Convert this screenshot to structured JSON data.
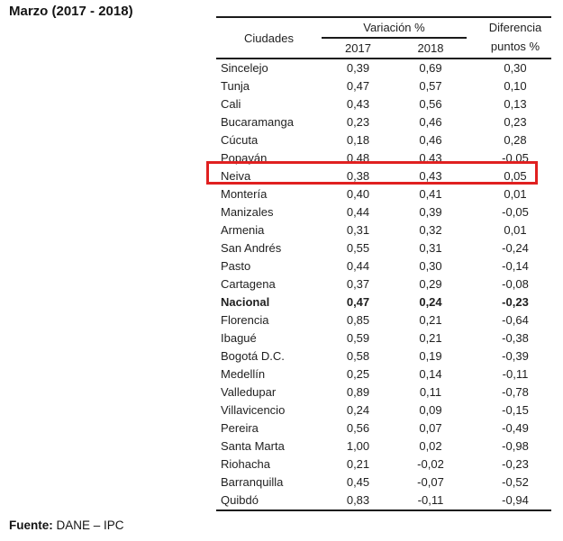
{
  "title": "Marzo (2017 - 2018)",
  "highlight": {
    "color": "#e02020",
    "city": "Neiva"
  },
  "source": {
    "label": "Fuente:",
    "text": " DANE – IPC"
  },
  "table": {
    "header": {
      "ciudades": "Ciudades",
      "variacion": "Variación %",
      "year_2017": "2017",
      "year_2018": "2018",
      "diferencia_line1": "Diferencia",
      "diferencia_line2": "puntos %"
    },
    "rows": [
      {
        "city": "Sincelejo",
        "v2017": "0,39",
        "v2018": "0,69",
        "diff": "0,30",
        "bold": false,
        "highlighted": false
      },
      {
        "city": "Tunja",
        "v2017": "0,47",
        "v2018": "0,57",
        "diff": "0,10",
        "bold": false,
        "highlighted": false
      },
      {
        "city": "Cali",
        "v2017": "0,43",
        "v2018": "0,56",
        "diff": "0,13",
        "bold": false,
        "highlighted": false
      },
      {
        "city": "Bucaramanga",
        "v2017": "0,23",
        "v2018": "0,46",
        "diff": "0,23",
        "bold": false,
        "highlighted": false
      },
      {
        "city": "Cúcuta",
        "v2017": "0,18",
        "v2018": "0,46",
        "diff": "0,28",
        "bold": false,
        "highlighted": false
      },
      {
        "city": "Popayán",
        "v2017": "0,48",
        "v2018": "0,43",
        "diff": "-0,05",
        "bold": false,
        "highlighted": false
      },
      {
        "city": "Neiva",
        "v2017": "0,38",
        "v2018": "0,43",
        "diff": "0,05",
        "bold": false,
        "highlighted": true
      },
      {
        "city": "Montería",
        "v2017": "0,40",
        "v2018": "0,41",
        "diff": "0,01",
        "bold": false,
        "highlighted": false
      },
      {
        "city": "Manizales",
        "v2017": "0,44",
        "v2018": "0,39",
        "diff": "-0,05",
        "bold": false,
        "highlighted": false
      },
      {
        "city": "Armenia",
        "v2017": "0,31",
        "v2018": "0,32",
        "diff": "0,01",
        "bold": false,
        "highlighted": false
      },
      {
        "city": "San Andrés",
        "v2017": "0,55",
        "v2018": "0,31",
        "diff": "-0,24",
        "bold": false,
        "highlighted": false
      },
      {
        "city": "Pasto",
        "v2017": "0,44",
        "v2018": "0,30",
        "diff": "-0,14",
        "bold": false,
        "highlighted": false
      },
      {
        "city": "Cartagena",
        "v2017": "0,37",
        "v2018": "0,29",
        "diff": "-0,08",
        "bold": false,
        "highlighted": false
      },
      {
        "city": "Nacional",
        "v2017": "0,47",
        "v2018": "0,24",
        "diff": "-0,23",
        "bold": true,
        "highlighted": false
      },
      {
        "city": "Florencia",
        "v2017": "0,85",
        "v2018": "0,21",
        "diff": "-0,64",
        "bold": false,
        "highlighted": false
      },
      {
        "city": "Ibagué",
        "v2017": "0,59",
        "v2018": "0,21",
        "diff": "-0,38",
        "bold": false,
        "highlighted": false
      },
      {
        "city": "Bogotá D.C.",
        "v2017": "0,58",
        "v2018": "0,19",
        "diff": "-0,39",
        "bold": false,
        "highlighted": false
      },
      {
        "city": "Medellín",
        "v2017": "0,25",
        "v2018": "0,14",
        "diff": "-0,11",
        "bold": false,
        "highlighted": false
      },
      {
        "city": "Valledupar",
        "v2017": "0,89",
        "v2018": "0,11",
        "diff": "-0,78",
        "bold": false,
        "highlighted": false
      },
      {
        "city": "Villavicencio",
        "v2017": "0,24",
        "v2018": "0,09",
        "diff": "-0,15",
        "bold": false,
        "highlighted": false
      },
      {
        "city": "Pereira",
        "v2017": "0,56",
        "v2018": "0,07",
        "diff": "-0,49",
        "bold": false,
        "highlighted": false
      },
      {
        "city": "Santa Marta",
        "v2017": "1,00",
        "v2018": "0,02",
        "diff": "-0,98",
        "bold": false,
        "highlighted": false
      },
      {
        "city": "Riohacha",
        "v2017": "0,21",
        "v2018": "-0,02",
        "diff": "-0,23",
        "bold": false,
        "highlighted": false
      },
      {
        "city": "Barranquilla",
        "v2017": "0,45",
        "v2018": "-0,07",
        "diff": "-0,52",
        "bold": false,
        "highlighted": false
      },
      {
        "city": "Quibdó",
        "v2017": "0,83",
        "v2018": "-0,11",
        "diff": "-0,94",
        "bold": false,
        "highlighted": false
      }
    ]
  }
}
